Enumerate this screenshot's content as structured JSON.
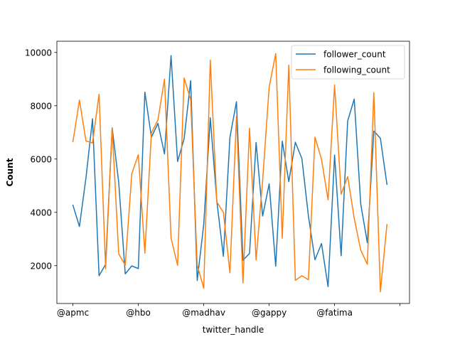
{
  "chart_data": {
    "type": "line",
    "title": "",
    "xlabel": "twitter_handle",
    "ylabel": "Count",
    "x_tick_labels": [
      "@apmc",
      "@hbo",
      "@madhav",
      "@gappy",
      "@fatima",
      ""
    ],
    "x_tick_positions": [
      0,
      10,
      20,
      30,
      40,
      50
    ],
    "xlim": [
      -2.45,
      51.45
    ],
    "ylim": [
      580,
      10420
    ],
    "y_ticks": [
      2000,
      4000,
      6000,
      8000,
      10000
    ],
    "y_tick_labels": [
      "2000",
      "4000",
      "6000",
      "8000",
      "10000"
    ],
    "grid": false,
    "legend_position": "upper-right",
    "series": [
      {
        "name": "follower_count",
        "color": "#1f77b4",
        "values": [
          4270,
          3470,
          5300,
          7510,
          1620,
          2050,
          7170,
          5130,
          1690,
          1990,
          1890,
          8510,
          6820,
          7340,
          6190,
          9880,
          5910,
          6760,
          8940,
          1440,
          3550,
          7550,
          4420,
          2350,
          6810,
          8150,
          2200,
          2460,
          6620,
          3860,
          5070,
          1980,
          6670,
          5150,
          6630,
          6020,
          3860,
          2220,
          2830,
          1210,
          6150,
          2370,
          7430,
          8250,
          4310,
          2860,
          7050,
          6780,
          5050
        ]
      },
      {
        "name": "following_count",
        "color": "#ff7f0e",
        "values": [
          6650,
          8210,
          6680,
          6600,
          8430,
          1880,
          7160,
          2440,
          2020,
          5450,
          6160,
          2470,
          6980,
          7470,
          9000,
          3040,
          2010,
          9040,
          8230,
          2020,
          1150,
          9710,
          4390,
          4000,
          1730,
          7600,
          1350,
          7160,
          2210,
          5200,
          8700,
          9960,
          3030,
          9520,
          1450,
          1620,
          1470,
          6820,
          5990,
          4470,
          8780,
          4680,
          5340,
          3780,
          2580,
          2050,
          8490,
          1020,
          3540
        ]
      }
    ]
  }
}
